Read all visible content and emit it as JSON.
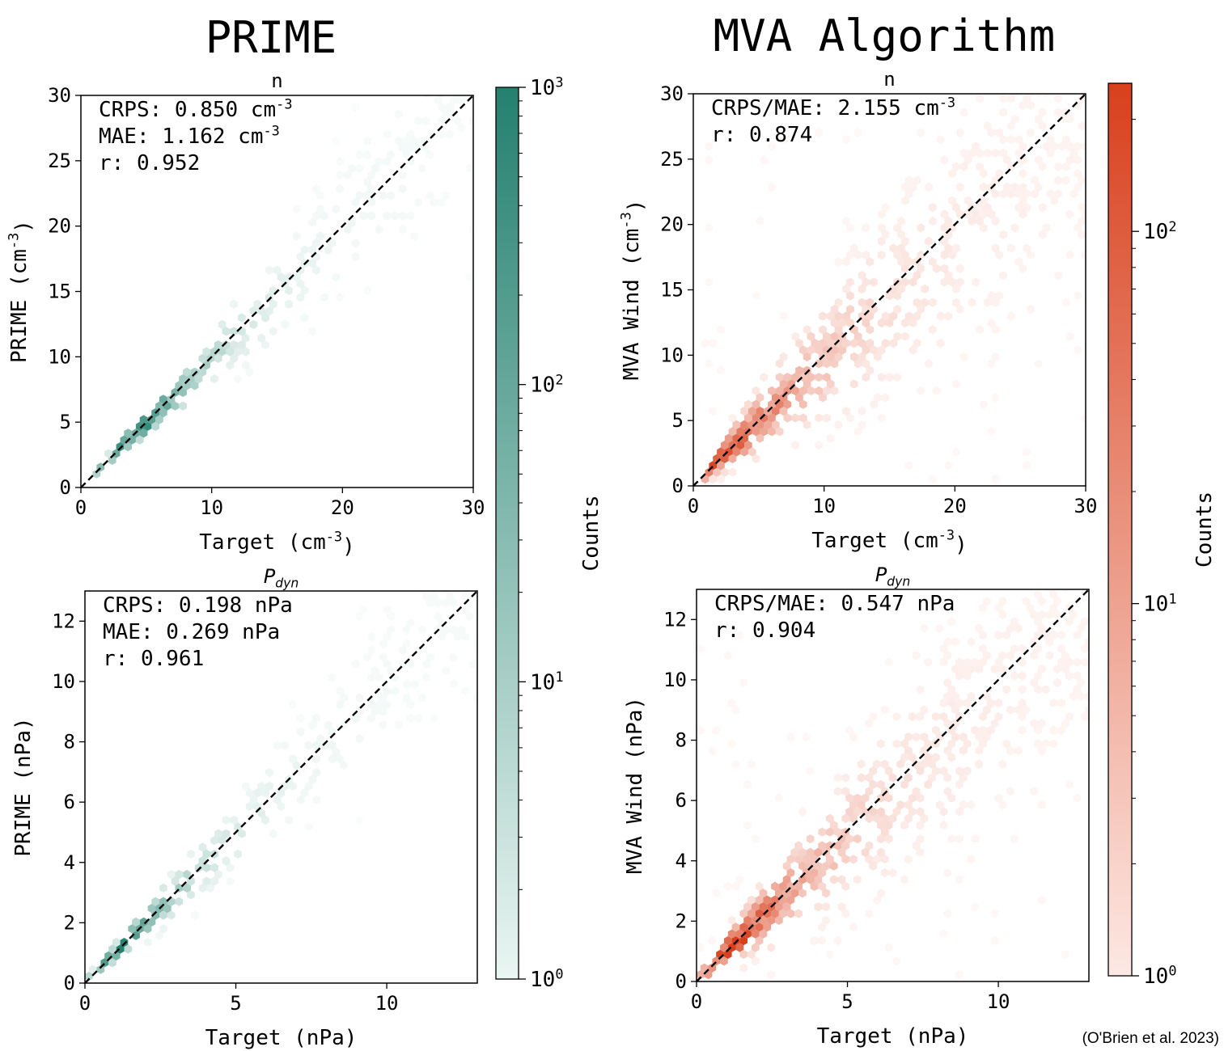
{
  "figure": {
    "left_title": "PRIME",
    "right_title": "MVA Algorithm",
    "credit": "(O'Brien et al. 2023)"
  },
  "colorbars": {
    "prime": {
      "label": "Counts",
      "scale": "log",
      "range": [
        1,
        1000
      ],
      "ticks": [
        "10^0",
        "10^1",
        "10^2",
        "10^3"
      ],
      "color_low": "#eaf6f3",
      "color_high": "#24806f"
    },
    "mva": {
      "label": "Counts",
      "scale": "log",
      "range": [
        1,
        250
      ],
      "ticks": [
        "10^0",
        "10^1",
        "10^2"
      ],
      "color_low": "#fde8e3",
      "color_high": "#d8401d"
    }
  },
  "chart_data": [
    {
      "type": "scatter",
      "subtype": "hexbin",
      "panel": "prime-n",
      "title": "n",
      "xlabel": "Target (cm^-3)",
      "ylabel": "PRIME (cm^-3)",
      "xlim": [
        0,
        30
      ],
      "ylim": [
        0,
        30
      ],
      "xticks": [
        0,
        10,
        20,
        30
      ],
      "yticks": [
        0,
        5,
        10,
        15,
        20,
        25,
        30
      ],
      "reference_line": "y=x (dashed)",
      "stats": [
        "CRPS: 0.850 cm^-3",
        "MAE: 1.162 cm^-3",
        "r: 0.952"
      ],
      "colorbar": "prime",
      "description_of_density": {
        "x_range": [
          0.5,
          30
        ],
        "y_range": [
          0.5,
          30
        ],
        "peak_at": [
          4.5,
          4.5
        ],
        "spread": 0.13
      }
    },
    {
      "type": "scatter",
      "subtype": "hexbin",
      "panel": "prime-pdyn",
      "title": "P_dyn",
      "xlabel": "Target (nPa)",
      "ylabel": "PRIME (nPa)",
      "xlim": [
        0,
        13
      ],
      "ylim": [
        0,
        13
      ],
      "xticks": [
        0,
        5,
        10
      ],
      "yticks": [
        0,
        2,
        4,
        6,
        8,
        10,
        12
      ],
      "reference_line": "y=x (dashed)",
      "stats": [
        "CRPS: 0.198 nPa",
        "MAE: 0.269 nPa",
        "r: 0.961"
      ],
      "colorbar": "prime",
      "description_of_density": {
        "x_range": [
          0.1,
          12.8
        ],
        "y_range": [
          0.1,
          12.5
        ],
        "peak_at": [
          1.2,
          1.1
        ],
        "spread": 0.12
      }
    },
    {
      "type": "scatter",
      "subtype": "hexbin",
      "panel": "mva-n",
      "title": "n",
      "xlabel": "Target (cm^-3)",
      "ylabel": "MVA Wind (cm^-3)",
      "xlim": [
        0,
        30
      ],
      "ylim": [
        0,
        30
      ],
      "xticks": [
        0,
        10,
        20,
        30
      ],
      "yticks": [
        0,
        5,
        10,
        15,
        20,
        25,
        30
      ],
      "reference_line": "y=x (dashed)",
      "stats": [
        "CRPS/MAE: 2.155 cm^-3",
        "r: 0.874"
      ],
      "colorbar": "mva",
      "description_of_density": {
        "x_range": [
          0.5,
          30
        ],
        "y_range": [
          0.5,
          30
        ],
        "peak_at": [
          2.5,
          3.0
        ],
        "spread": 0.25
      }
    },
    {
      "type": "scatter",
      "subtype": "hexbin",
      "panel": "mva-pdyn",
      "title": "P_dyn",
      "xlabel": "Target (nPa)",
      "ylabel": "MVA Wind (nPa)",
      "xlim": [
        0,
        13
      ],
      "ylim": [
        0,
        13
      ],
      "xticks": [
        0,
        5,
        10
      ],
      "yticks": [
        0,
        2,
        4,
        6,
        8,
        10,
        12
      ],
      "reference_line": "y=x (dashed)",
      "stats": [
        "CRPS/MAE: 0.547 nPa",
        "r: 0.904"
      ],
      "colorbar": "mva",
      "description_of_density": {
        "x_range": [
          0.1,
          12.5
        ],
        "y_range": [
          0.1,
          12.5
        ],
        "peak_at": [
          1.2,
          1.4
        ],
        "spread": 0.22
      }
    }
  ]
}
